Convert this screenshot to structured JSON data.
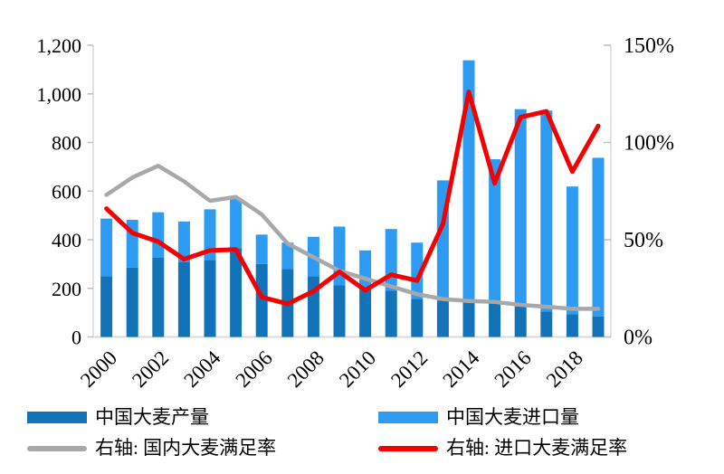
{
  "chart_data": {
    "type": "bar",
    "combo": "stacked bars (left axis) + two lines (right axis)",
    "x": [
      "2000",
      "2001",
      "2002",
      "2003",
      "2004",
      "2005",
      "2006",
      "2007",
      "2008",
      "2009",
      "2010",
      "2011",
      "2012",
      "2013",
      "2014",
      "2015",
      "2016",
      "2017",
      "2018",
      "2019"
    ],
    "series": [
      {
        "name": "中国大麦产量",
        "type": "bar",
        "stack": "total",
        "axis": "left",
        "color": "#1273B9",
        "values": [
          250,
          285,
          327,
          307,
          316,
          365,
          300,
          280,
          250,
          212,
          194,
          190,
          156,
          150,
          144,
          140,
          125,
          104,
          94,
          84
        ]
      },
      {
        "name": "中国大麦进口量",
        "type": "bar",
        "stack": "total",
        "axis": "left",
        "color": "#2E9BF2",
        "values": [
          237,
          197,
          186,
          168,
          209,
          204,
          121,
          108,
          162,
          242,
          162,
          254,
          232,
          494,
          994,
          591,
          812,
          827,
          525,
          653
        ]
      },
      {
        "name": "右轴: 国内大麦满足率",
        "type": "line",
        "axis": "right",
        "unit": "%",
        "color": "#A8A8A8",
        "values": [
          73,
          82,
          88,
          80,
          70,
          72,
          63,
          48,
          41,
          34,
          30,
          26,
          22,
          19.5,
          18.5,
          18,
          16.5,
          15.5,
          14.5,
          14.5
        ]
      },
      {
        "name": "右轴: 进口大麦满足率",
        "type": "line",
        "axis": "right",
        "unit": "%",
        "color": "#F40000",
        "values": [
          66,
          53.5,
          49,
          40,
          44.5,
          45,
          20.5,
          17,
          23.5,
          33.5,
          24,
          32,
          29,
          58,
          126,
          79,
          113,
          116,
          85,
          108.5
        ]
      }
    ],
    "left_axis": {
      "min": 0,
      "max": 1200,
      "step": 200,
      "tick_labels": [
        "0",
        "200",
        "400",
        "600",
        "800",
        "1,000",
        "1,200"
      ]
    },
    "right_axis": {
      "min": 0,
      "max": 150,
      "step": 50,
      "tick_labels": [
        "0%",
        "50%",
        "100%",
        "150%"
      ]
    },
    "x_tick_labels": [
      "2000",
      "2002",
      "2004",
      "2006",
      "2008",
      "2010",
      "2012",
      "2014",
      "2016",
      "2018"
    ],
    "grid": false,
    "legend_position": "bottom"
  },
  "legend": {
    "items": [
      {
        "label": "中国大麦产量",
        "swatch": "bar",
        "color": "#1273B9"
      },
      {
        "label": "中国大麦进口量",
        "swatch": "bar",
        "color": "#2E9BF2"
      },
      {
        "label": "右轴: 国内大麦满足率",
        "swatch": "line",
        "color": "#A8A8A8"
      },
      {
        "label": "右轴: 进口大麦满足率",
        "swatch": "line",
        "color": "#F40000"
      }
    ]
  },
  "style_colors": {
    "axis_line": "#D9D9D9",
    "tick_mark": "#BFBFBF",
    "text": "#000000",
    "background": "#FFFFFF"
  }
}
